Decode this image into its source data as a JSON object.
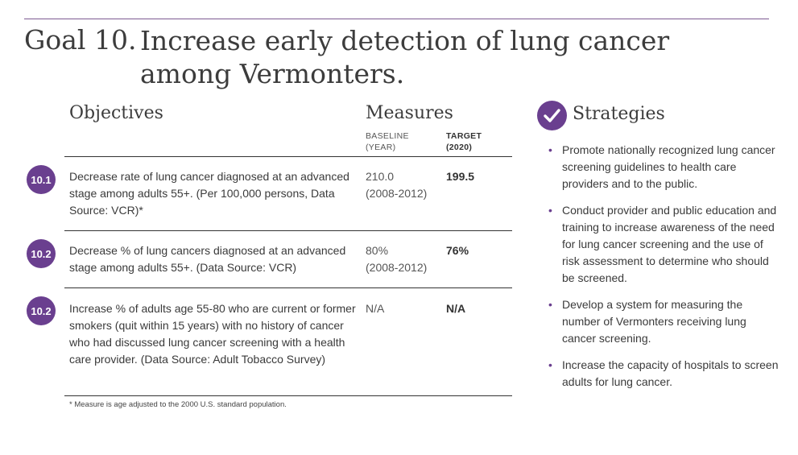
{
  "header": {
    "goal_label": "Goal 10.",
    "goal_title": "Increase early detection of lung cancer among Vermonters."
  },
  "objectives_table": {
    "objectives_heading": "Objectives",
    "measures_heading": "Measures",
    "baseline_heading_line1": "BASELINE",
    "baseline_heading_line2": "(YEAR)",
    "target_heading_line1": "TARGET",
    "target_heading_line2": "(2020)",
    "rows": [
      {
        "number": "10.1",
        "text": "Decrease rate of lung cancer diagnosed at an advanced stage among adults 55+. (Per 100,000 persons, Data Source: VCR)*",
        "baseline_value": "210.0",
        "baseline_year": "(2008-2012)",
        "target": "199.5"
      },
      {
        "number": "10.2",
        "text": "Decrease % of lung cancers diagnosed at an advanced stage among adults 55+. (Data Source: VCR)",
        "baseline_value": "80%",
        "baseline_year": "(2008-2012)",
        "target": "76%"
      },
      {
        "number": "10.2",
        "text": "Increase % of adults age 55-80 who are current or former smokers (quit within 15 years) with no history of cancer who had discussed lung cancer screening with a health care provider. (Data Source: Adult Tobacco Survey)",
        "baseline_value": "N/A",
        "baseline_year": "",
        "target": "N/A"
      }
    ],
    "footnote": "* Measure is age adjusted to the 2000 U.S. standard population."
  },
  "strategies": {
    "icon": "check-circle-icon",
    "heading": "Strategies",
    "bullet": "•",
    "items": [
      "Promote nationally recognized lung cancer screening guidelines to health care providers and to the public.",
      "Conduct provider and public education and training to increase awareness of the need for lung cancer screening and the use of risk assessment to determine who should be screened.",
      "Develop a system for measuring the number of Vermonters receiving lung cancer screening.",
      "Increase the capacity of hospitals to screen adults for lung cancer."
    ]
  },
  "colors": {
    "accent_purple": "#6a3f8f",
    "rule": "#333333"
  }
}
